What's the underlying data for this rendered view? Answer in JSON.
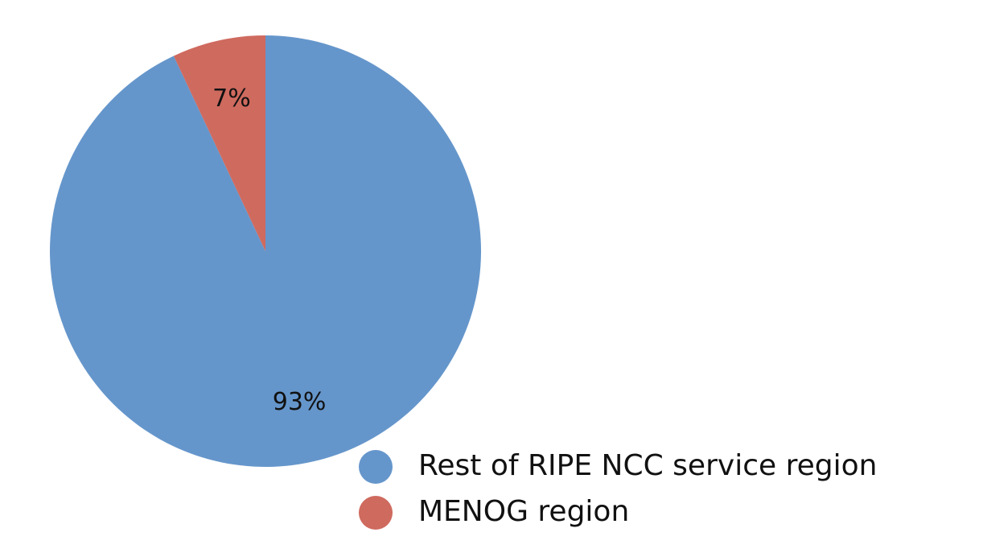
{
  "chart_data": {
    "type": "pie",
    "categories": [
      "Rest of RIPE NCC service region",
      "MENOG region"
    ],
    "values": [
      93,
      7
    ],
    "value_labels": [
      "93%",
      "7%"
    ],
    "colors": [
      "#6596cb",
      "#cf6a5f"
    ]
  }
}
